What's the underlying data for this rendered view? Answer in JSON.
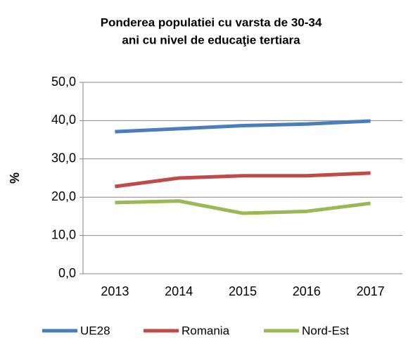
{
  "chart_data": {
    "type": "line",
    "title": [
      "Ponderea populatiei cu varsta de 30-34",
      "ani cu nivel de educaţie tertiara"
    ],
    "y_label": "%",
    "categories": [
      "2013",
      "2014",
      "2015",
      "2016",
      "2017"
    ],
    "series": [
      {
        "name": "UE28",
        "color": "#4a7ebb",
        "values": [
          37.1,
          37.9,
          38.7,
          39.1,
          39.9
        ]
      },
      {
        "name": "Romania",
        "color": "#be4b48",
        "values": [
          22.8,
          25.0,
          25.6,
          25.6,
          26.3
        ]
      },
      {
        "name": "Nord-Est",
        "color": "#98b954",
        "values": [
          18.6,
          19.0,
          15.8,
          16.3,
          18.4
        ]
      }
    ],
    "ylim": [
      0,
      50
    ],
    "yticks": [
      {
        "value": 0,
        "label": "0,0"
      },
      {
        "value": 10,
        "label": "10,0"
      },
      {
        "value": 20,
        "label": "20,0"
      },
      {
        "value": 30,
        "label": "30,0"
      },
      {
        "value": 40,
        "label": "40,0"
      },
      {
        "value": 50,
        "label": "50,0"
      }
    ],
    "grid": true,
    "legend": "bottom"
  }
}
